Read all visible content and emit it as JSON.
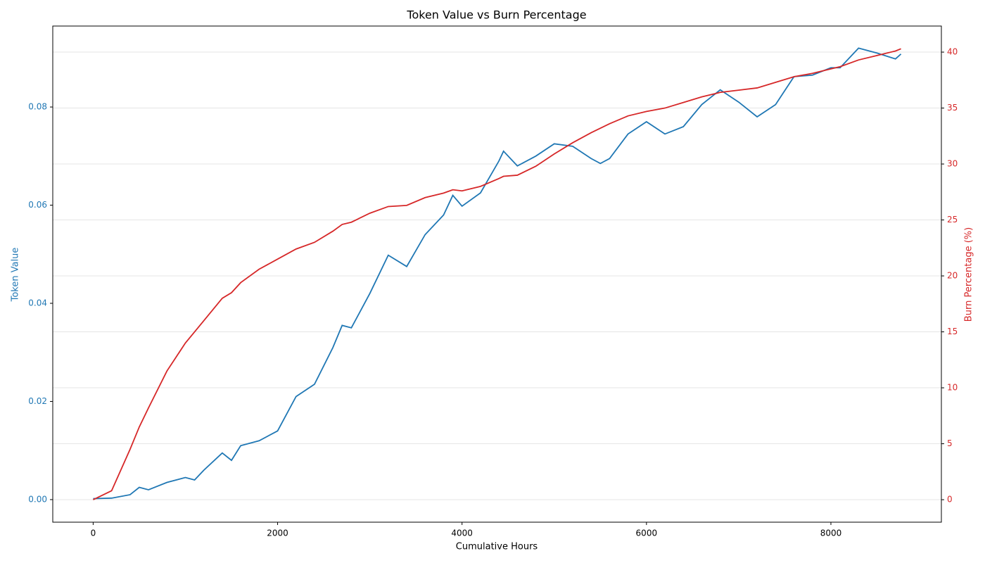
{
  "chart_data": {
    "type": "line",
    "title": "Token Value vs Burn Percentage",
    "x_label": "Cumulative Hours",
    "y_label": "Token Value",
    "y2_label": "Burn Percentage (%)",
    "x": [
      0,
      200,
      400,
      500,
      600,
      800,
      1000,
      1100,
      1200,
      1400,
      1500,
      1600,
      1800,
      2000,
      2200,
      2400,
      2600,
      2700,
      2800,
      3000,
      3200,
      3400,
      3600,
      3800,
      3900,
      4000,
      4200,
      4400,
      4450,
      4600,
      4800,
      5000,
      5200,
      5400,
      5500,
      5600,
      5800,
      6000,
      6200,
      6400,
      6600,
      6800,
      7000,
      7200,
      7400,
      7600,
      7800,
      8000,
      8100,
      8300,
      8500,
      8700,
      8760
    ],
    "series": [
      {
        "name": "Token Value",
        "color": "#1f77b4",
        "axis": "y",
        "values": [
          0.0002,
          0.0003,
          0.001,
          0.0025,
          0.002,
          0.0035,
          0.0045,
          0.004,
          0.006,
          0.0095,
          0.008,
          0.011,
          0.012,
          0.014,
          0.021,
          0.0235,
          0.031,
          0.0355,
          0.035,
          0.042,
          0.0498,
          0.0475,
          0.054,
          0.058,
          0.062,
          0.0598,
          0.0625,
          0.069,
          0.071,
          0.068,
          0.07,
          0.0725,
          0.072,
          0.0695,
          0.0685,
          0.0695,
          0.0745,
          0.077,
          0.0745,
          0.076,
          0.0805,
          0.0835,
          0.081,
          0.078,
          0.0805,
          0.0862,
          0.0865,
          0.088,
          0.088,
          0.092,
          0.091,
          0.0898,
          0.0908
        ]
      },
      {
        "name": "Burn Percentage",
        "color": "#d62728",
        "axis": "y2",
        "values": [
          0,
          0.8,
          4.5,
          6.5,
          8.2,
          11.5,
          14,
          15,
          16,
          18,
          18.5,
          19.4,
          20.6,
          21.5,
          22.4,
          23,
          24,
          24.6,
          24.8,
          25.6,
          26.2,
          26.3,
          27,
          27.4,
          27.7,
          27.6,
          28,
          28.7,
          28.9,
          29,
          29.8,
          30.9,
          31.9,
          32.8,
          33.2,
          33.6,
          34.3,
          34.7,
          35,
          35.5,
          36,
          36.4,
          36.6,
          36.8,
          37.3,
          37.8,
          38.1,
          38.5,
          38.7,
          39.3,
          39.7,
          40.1,
          40.3
        ]
      }
    ],
    "xlim": [
      -438,
      9198
    ],
    "xticks": [
      0,
      2000,
      4000,
      6000,
      8000
    ],
    "ylim": [
      -0.0046,
      0.0965
    ],
    "yticks": [
      {
        "value": 0,
        "label": "0.00"
      },
      0.02,
      0.04,
      0.06,
      0.08
    ],
    "y2lim": [
      -2.01,
      42.33
    ],
    "y2ticks": [
      0,
      5,
      10,
      15,
      20,
      25,
      30,
      35,
      40
    ],
    "grid": true
  }
}
